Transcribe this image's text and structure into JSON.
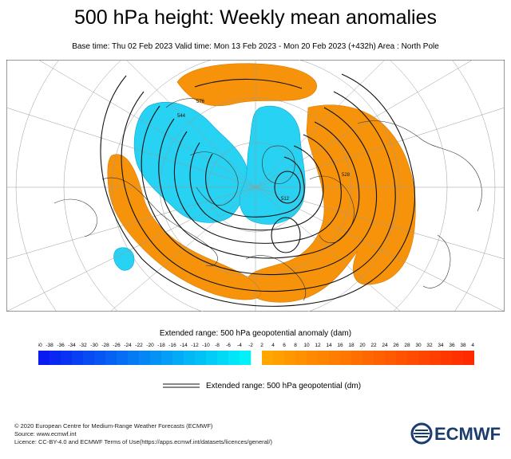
{
  "title": "500 hPa height: Weekly mean anomalies",
  "subtitle": "Base time: Thu 02 Feb 2023 Valid time: Mon 13 Feb 2023 - Mon 20 Feb 2023 (+432h) Area : North Pole",
  "map": {
    "contour_labels": [
      "576",
      "544",
      "512",
      "528"
    ]
  },
  "colorbar": {
    "title": "Extended range: 500 hPa geopotential anomaly (dam)",
    "ticks": [
      "-40",
      "-38",
      "-36",
      "-34",
      "-32",
      "-30",
      "-28",
      "-26",
      "-24",
      "-22",
      "-20",
      "-18",
      "-16",
      "-14",
      "-12",
      "-10",
      "-8",
      "-6",
      "-4",
      "-2",
      "2",
      "4",
      "6",
      "8",
      "10",
      "12",
      "14",
      "16",
      "18",
      "20",
      "22",
      "24",
      "26",
      "28",
      "30",
      "32",
      "34",
      "36",
      "38",
      "40"
    ],
    "negative_colors": [
      "#0a1bf2",
      "#00f1f8"
    ],
    "positive_colors": [
      "#ffa600",
      "#ff2a00"
    ]
  },
  "legend": {
    "line_label": "Extended range: 500 hPa geopotential (dm)"
  },
  "footer": {
    "line1": "© 2020 European Centre for Medium-Range Weather Forecasts (ECMWF)",
    "line2": "Source: www.ecmwf.int",
    "line3": "Licence: CC-BY-4.0 and ECMWF Terms of Use(https://apps.ecmwf.int/datasets/licences/general/)"
  },
  "logo": {
    "text": "ECMWF",
    "icon": "ecmwf-logo-icon"
  }
}
